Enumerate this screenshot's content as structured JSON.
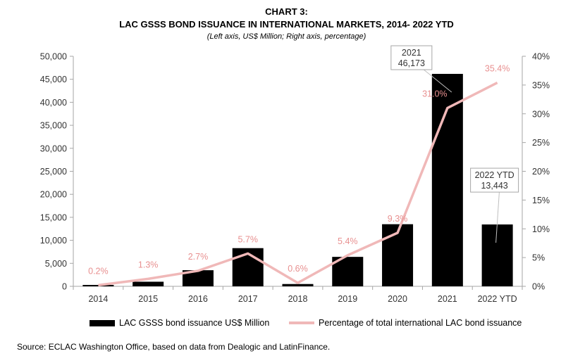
{
  "header": {
    "title_line1": "CHART 3:",
    "title_line2": "LAC GSSS BOND ISSUANCE IN INTERNATIONAL MARKETS, 2014- 2022 YTD",
    "subtitle": "(Left axis, US$ Million; Right axis, percentage)"
  },
  "chart_data": {
    "type": "bar",
    "categories": [
      "2014",
      "2015",
      "2016",
      "2017",
      "2018",
      "2019",
      "2020",
      "2021",
      "2022 YTD"
    ],
    "series": [
      {
        "name": "LAC GSSS bond issuance US$ Million",
        "kind": "bar",
        "axis": "left",
        "values": [
          300,
          1000,
          3500,
          8300,
          500,
          6400,
          13500,
          46173,
          13443
        ],
        "color": "#000000"
      },
      {
        "name": "Percentage of total international LAC bond issuance",
        "kind": "line",
        "axis": "right",
        "values": [
          0.2,
          1.3,
          2.7,
          5.7,
          0.6,
          5.4,
          9.3,
          31.0,
          35.4
        ],
        "labels": [
          "0.2%",
          "1.3%",
          "2.7%",
          "5.7%",
          "0.6%",
          "5.4%",
          "9.3%",
          "31.0%",
          "35.4%"
        ],
        "color": "#f0b8b8",
        "label_color": "#e89090"
      }
    ],
    "left_axis": {
      "ylim": [
        0,
        50000
      ],
      "ticks": [
        0,
        5000,
        10000,
        15000,
        20000,
        25000,
        30000,
        35000,
        40000,
        45000,
        50000
      ],
      "tick_labels": [
        "0",
        "5,000",
        "10,000",
        "15,000",
        "20,000",
        "25,000",
        "30,000",
        "35,000",
        "40,000",
        "45,000",
        "50,000"
      ]
    },
    "right_axis": {
      "ylim": [
        0,
        40
      ],
      "ticks": [
        0,
        5,
        10,
        15,
        20,
        25,
        30,
        35,
        40
      ],
      "tick_labels": [
        "0%",
        "5%",
        "10%",
        "15%",
        "20%",
        "25%",
        "30%",
        "35%",
        "40%"
      ]
    },
    "callouts": [
      {
        "category_index": 7,
        "line1": "2021",
        "line2": "46,173"
      },
      {
        "category_index": 8,
        "line1": "2022 YTD",
        "line2": "13,443"
      }
    ],
    "grid": false,
    "legend_position": "bottom"
  },
  "legend": {
    "bar_label": "LAC GSSS bond issuance US$ Million",
    "line_label": "Percentage of total international LAC bond issuance"
  },
  "footer": {
    "source": "Source: ECLAC Washington Office, based on data from Dealogic and LatinFinance."
  }
}
